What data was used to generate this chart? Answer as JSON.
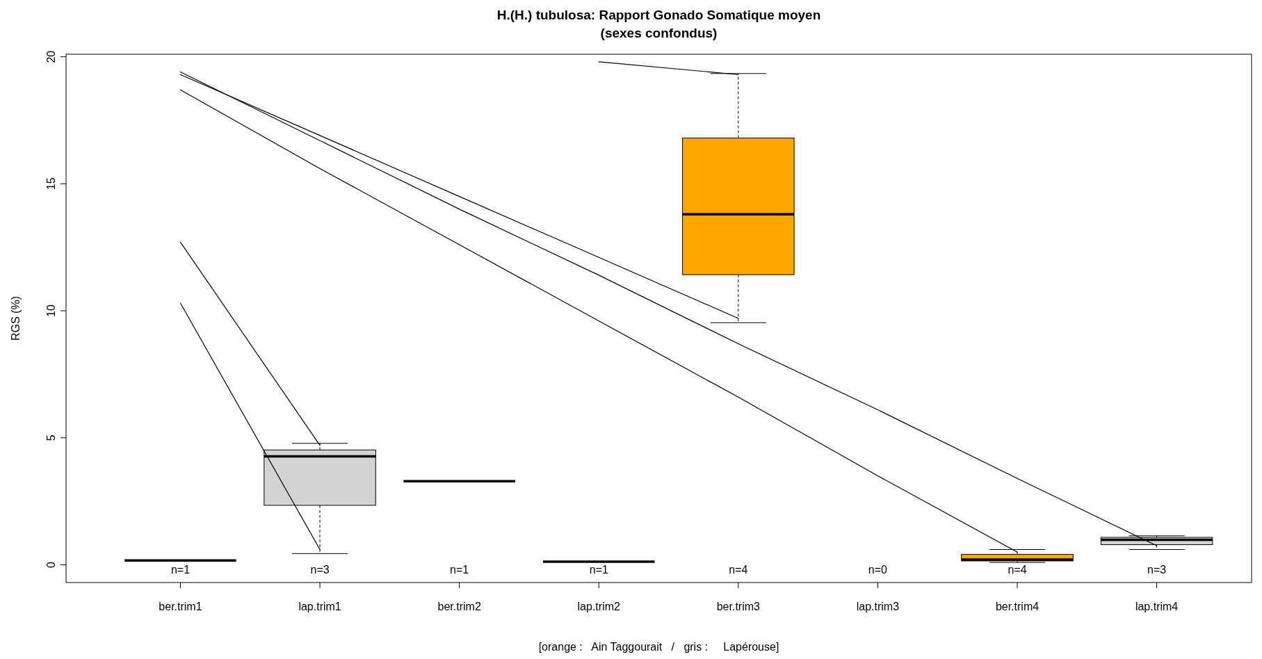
{
  "chart_data": {
    "type": "box",
    "title": "H.(H.) tubulosa: Rapport Gonado Somatique moyen",
    "subtitle": "(sexes confondus)",
    "ylabel": "RGS (%)",
    "categories": [
      "ber.trim1",
      "lap.trim1",
      "ber.trim2",
      "lap.trim2",
      "ber.trim3",
      "lap.trim3",
      "ber.trim4",
      "lap.trim4"
    ],
    "colors": [
      null,
      "#d3d3d3",
      null,
      null,
      "#ffa500",
      null,
      "#ffa500",
      "#d3d3d3"
    ],
    "boxes": [
      {
        "low": 0.17,
        "q1": 0.17,
        "median": 0.17,
        "q3": 0.17,
        "high": 0.17
      },
      {
        "low": 0.44,
        "q1": 2.34,
        "median": 4.27,
        "q3": 4.52,
        "high": 4.78
      },
      {
        "low": 3.29,
        "q1": 3.29,
        "median": 3.29,
        "q3": 3.29,
        "high": 3.29
      },
      {
        "low": 0.12,
        "q1": 0.12,
        "median": 0.12,
        "q3": 0.12,
        "high": 0.12
      },
      {
        "low": 9.53,
        "q1": 11.42,
        "median": 13.8,
        "q3": 16.8,
        "high": 19.34
      },
      null,
      {
        "low": 0.09,
        "q1": 0.15,
        "median": 0.2,
        "q3": 0.41,
        "high": 0.6
      },
      {
        "low": 0.6,
        "q1": 0.79,
        "median": 0.98,
        "q3": 1.08,
        "high": 1.14
      }
    ],
    "series": [
      {
        "type": "line",
        "color": "#000000",
        "values": [
          12.7,
          4.7,
          null,
          null,
          null,
          null,
          null,
          null
        ]
      },
      {
        "type": "line",
        "color": "#000000",
        "values": [
          10.3,
          0.6,
          null,
          null,
          null,
          null,
          null,
          null
        ]
      },
      {
        "type": "line",
        "color": "#000000",
        "values": [
          18.7,
          15.6,
          12.6,
          9.6,
          6.6,
          3.5,
          0.5,
          null
        ]
      },
      {
        "type": "line",
        "color": "#000000",
        "values": [
          19.3,
          16.9,
          14.5,
          12.1,
          9.7,
          null,
          null,
          null
        ]
      },
      {
        "type": "line",
        "color": "#000000",
        "values": [
          19.4,
          16.7,
          14.0,
          11.4,
          8.7,
          6.1,
          3.4,
          0.75
        ]
      },
      {
        "type": "line",
        "color": "#000000",
        "values": [
          null,
          null,
          null,
          19.8,
          19.3,
          null,
          null,
          null
        ]
      }
    ],
    "marker": "none",
    "ylim": [
      -0.7,
      20.1
    ],
    "yticks": [
      0,
      5,
      10,
      15,
      20
    ],
    "annotations": [
      "n=1",
      "n=3",
      "n=1",
      "n=1",
      "n=4",
      "n=0",
      "n=4",
      "n=3",
      "[orange :   Ain Taggourait   /   gris :     Lapérouse]"
    ]
  }
}
